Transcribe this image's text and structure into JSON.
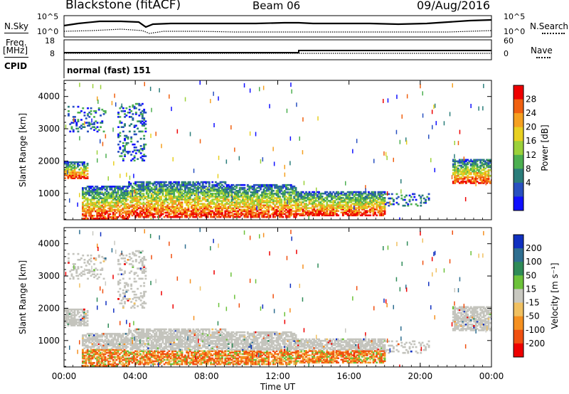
{
  "header": {
    "title": "Blackstone (fitACF)",
    "beam": "Beam 06",
    "date": "09/Aug/2016"
  },
  "meta_panels": {
    "nsky_label": "N.Sky",
    "nsearch_label": "N.Search",
    "freq_label": "Freq.",
    "freq_unit": "[MHz]",
    "nave_label": "Nave",
    "cpid_label": "CPID",
    "cpid_value": "normal (fast) 151",
    "noise_left_ticks": [
      "10^5",
      "10^0"
    ],
    "noise_right_ticks": [
      "10^5",
      "10^0"
    ],
    "freq_left_ticks": [
      "18",
      "8"
    ],
    "nave_right_ticks": [
      "60",
      "0"
    ]
  },
  "chart_data": [
    {
      "type": "heatmap",
      "title": "",
      "quantity": "Power",
      "xlabel": "Time UT",
      "ylabel": "Slant Range [km]",
      "x_ticks": [
        "00:00",
        "04:00",
        "08:00",
        "12:00",
        "16:00",
        "20:00",
        "00:00"
      ],
      "x_range_hours": [
        0,
        24
      ],
      "y_ticks": [
        1000,
        2000,
        3000,
        4000
      ],
      "ylim": [
        180,
        4500
      ],
      "colorbar_label": "Power [dB]",
      "colorbar_ticks": [
        4,
        8,
        12,
        16,
        20,
        24,
        28
      ],
      "colorbar_colors": [
        "#1010ff",
        "#2850c0",
        "#2a7d7a",
        "#4caf50",
        "#9bd13a",
        "#e8d020",
        "#f5a020",
        "#f06010",
        "#ee0000"
      ],
      "echo_regions": [
        {
          "t": [
            0.0,
            1.3
          ],
          "r": [
            1450,
            1950
          ],
          "level": "high"
        },
        {
          "t": [
            1.0,
            3.6
          ],
          "r": [
            200,
            1200
          ],
          "level": "high"
        },
        {
          "t": [
            3.6,
            9.0
          ],
          "r": [
            250,
            1350
          ],
          "level": "high"
        },
        {
          "t": [
            9.0,
            13.0
          ],
          "r": [
            250,
            1250
          ],
          "level": "high"
        },
        {
          "t": [
            13.0,
            18.0
          ],
          "r": [
            300,
            1050
          ],
          "level": "high"
        },
        {
          "t": [
            18.0,
            20.5
          ],
          "r": [
            600,
            1000
          ],
          "level": "low"
        },
        {
          "t": [
            21.8,
            24.0
          ],
          "r": [
            1300,
            2050
          ],
          "level": "high"
        },
        {
          "t": [
            0.2,
            2.3
          ],
          "r": [
            2900,
            3700
          ],
          "level": "low"
        },
        {
          "t": [
            3.0,
            4.6
          ],
          "r": [
            2000,
            3800
          ],
          "level": "low"
        }
      ]
    },
    {
      "type": "heatmap",
      "title": "",
      "quantity": "Velocity",
      "xlabel": "Time UT",
      "ylabel": "Slant Range [km]",
      "x_ticks": [
        "00:00",
        "04:00",
        "08:00",
        "12:00",
        "16:00",
        "20:00",
        "00:00"
      ],
      "x_range_hours": [
        0,
        24
      ],
      "y_ticks": [
        1000,
        2000,
        3000,
        4000
      ],
      "ylim": [
        180,
        4500
      ],
      "colorbar_label": "Velocity [m s⁻¹]",
      "colorbar_ticks": [
        200,
        100,
        50,
        15,
        -15,
        -50,
        -100,
        -200
      ],
      "colorbar_colors": [
        "#1030c0",
        "#2e6e90",
        "#2e8b57",
        "#6cc23a",
        "#c8c8c0",
        "#f0c060",
        "#f59020",
        "#f05010",
        "#ee0000"
      ],
      "ground_scatter_color": "#c4c4bd"
    }
  ]
}
